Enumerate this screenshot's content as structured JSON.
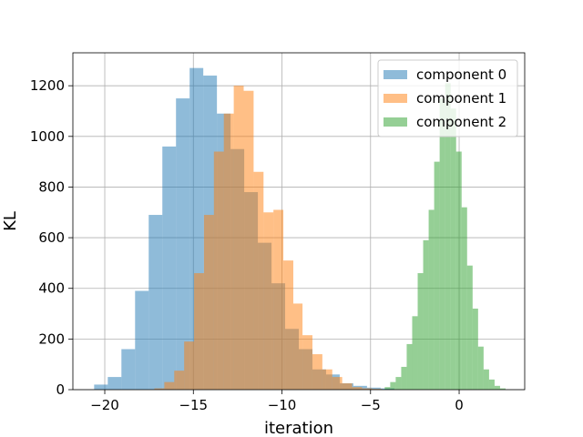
{
  "chart_data": {
    "type": "bar",
    "title": "",
    "xlabel": "iteration",
    "ylabel": "KL",
    "xlim": [
      -21.8,
      3.7
    ],
    "ylim": [
      0,
      1330
    ],
    "xticks": [
      -20,
      -15,
      -10,
      -5,
      0
    ],
    "xtick_labels": [
      "−20",
      "−15",
      "−10",
      "−5",
      "0"
    ],
    "yticks": [
      0,
      200,
      400,
      600,
      800,
      1000,
      1200
    ],
    "ytick_labels": [
      "0",
      "200",
      "400",
      "600",
      "800",
      "1000",
      "1200"
    ],
    "grid": true,
    "legend_position": "top-right",
    "series": [
      {
        "name": "component 0",
        "color": "#1f77b4",
        "alpha": 0.5,
        "bin_edges": [
          -20.6,
          -19.83,
          -19.06,
          -18.29,
          -17.52,
          -16.75,
          -15.98,
          -15.21,
          -14.44,
          -13.67,
          -12.9,
          -12.13,
          -11.36,
          -10.59,
          -9.82,
          -9.05,
          -8.28,
          -7.51,
          -6.74,
          -5.97,
          -5.2,
          -4.43,
          -3.66
        ],
        "counts": [
          20,
          50,
          160,
          390,
          690,
          960,
          1150,
          1270,
          1240,
          1090,
          950,
          780,
          580,
          420,
          240,
          160,
          80,
          60,
          25,
          15,
          8,
          5
        ]
      },
      {
        "name": "component 1",
        "color": "#ff7f0e",
        "alpha": 0.5,
        "bin_edges": [
          -17.2,
          -16.64,
          -16.08,
          -15.52,
          -14.96,
          -14.4,
          -13.84,
          -13.28,
          -12.72,
          -12.16,
          -11.6,
          -11.04,
          -10.48,
          -9.92,
          -9.36,
          -8.84,
          -8.28,
          -7.72,
          -7.16,
          -6.6,
          -6.04,
          -5.48,
          -4.92,
          -4.36
        ],
        "counts": [
          5,
          30,
          75,
          190,
          460,
          690,
          940,
          1090,
          1200,
          1180,
          860,
          700,
          710,
          510,
          340,
          215,
          140,
          80,
          50,
          25,
          10,
          5,
          3
        ]
      },
      {
        "name": "component 2",
        "color": "#2ca02c",
        "alpha": 0.5,
        "bin_edges": [
          -4.2,
          -3.89,
          -3.58,
          -3.27,
          -2.96,
          -2.65,
          -2.34,
          -2.03,
          -1.72,
          -1.41,
          -1.1,
          -0.79,
          -0.48,
          -0.17,
          0.14,
          0.45,
          0.76,
          1.07,
          1.38,
          1.69,
          2.0,
          2.31,
          2.62
        ],
        "counts": [
          10,
          30,
          50,
          90,
          180,
          290,
          460,
          590,
          710,
          900,
          1150,
          1210,
          1110,
          940,
          720,
          490,
          320,
          170,
          80,
          40,
          15,
          5
        ]
      }
    ]
  }
}
